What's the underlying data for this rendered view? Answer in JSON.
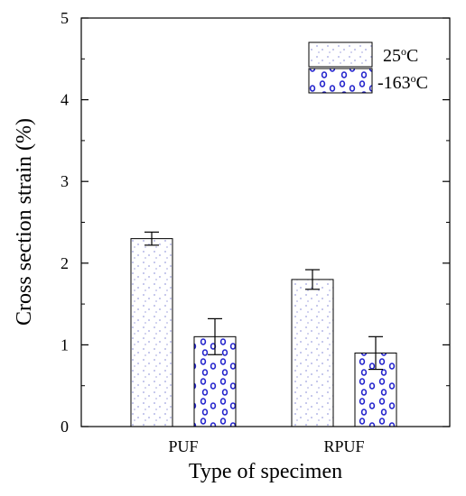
{
  "chart_data": {
    "type": "bar",
    "title": "",
    "xlabel": "Type of specimen",
    "ylabel": "Cross section strain (%)",
    "ylim": [
      0,
      5
    ],
    "yticks": [
      "0",
      "1",
      "2",
      "3",
      "4",
      "5"
    ],
    "categories": [
      "PUF",
      "RPUF"
    ],
    "series": [
      {
        "name_prefix": "25",
        "name_suffix": "C",
        "values": [
          2.3,
          1.8
        ],
        "errors": [
          0.08,
          0.12
        ]
      },
      {
        "name_prefix": "-163",
        "name_suffix": "C",
        "values": [
          1.1,
          0.9
        ],
        "errors": [
          0.22,
          0.2
        ]
      }
    ],
    "degree_mark": "o",
    "legend_position": "top-right",
    "grid": false,
    "colors": {
      "fill": "#ffffff",
      "dots_25C": "#b5b8e6",
      "circles_-163C": "#2222cc",
      "axis": "#000000"
    }
  }
}
